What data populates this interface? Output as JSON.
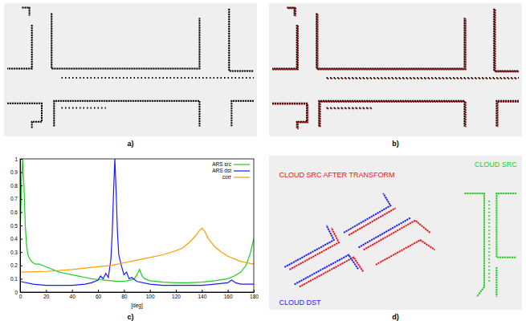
{
  "panels": [
    {
      "label": "a)",
      "xlim": [
        0,
        100
      ],
      "ylim": [
        0,
        55
      ],
      "clouds": [
        {
          "color": "#000000",
          "line_style": "solid",
          "polylines": [
            [
              [
                6,
                0.5
              ],
              [
                9,
                0.5
              ],
              [
                9,
                4
              ]
            ],
            [
              [
                10,
                8
              ],
              [
                10,
                27
              ],
              [
                0,
                27
              ]
            ],
            [
              [
                18,
                3
              ],
              [
                18,
                27
              ],
              [
                78,
                27
              ],
              [
                78,
                5
              ]
            ],
            [
              [
                90,
                1
              ],
              [
                90,
                28
              ],
              [
                100,
                28
              ]
            ],
            [
              [
                0,
                42
              ],
              [
                14,
                42
              ],
              [
                14,
                50
              ],
              [
                10,
                50
              ],
              [
                10,
                53
              ]
            ],
            [
              [
                19,
                52
              ],
              [
                19,
                41
              ],
              [
                78,
                41
              ],
              [
                78,
                52
              ]
            ],
            [
              [
                100,
                41
              ],
              [
                91,
                41
              ],
              [
                91,
                52
              ]
            ]
          ]
        },
        {
          "color": "#000000",
          "line_style": "dotted",
          "polylines": [
            [
              [
                22,
                31
              ],
              [
                100,
                31
              ]
            ],
            [
              [
                22,
                44
              ],
              [
                40,
                44
              ]
            ]
          ]
        }
      ]
    },
    {
      "label": "b)",
      "xlim": [
        0,
        100
      ],
      "ylim": [
        0,
        55
      ],
      "clouds": [
        {
          "color": "#000000",
          "line_style": "solid",
          "polylines": [
            [
              [
                6,
                0.5
              ],
              [
                9,
                0.5
              ],
              [
                9,
                4
              ]
            ],
            [
              [
                10,
                8
              ],
              [
                10,
                27
              ],
              [
                0,
                27
              ]
            ],
            [
              [
                18,
                3
              ],
              [
                18,
                27
              ],
              [
                78,
                27
              ],
              [
                78,
                5
              ]
            ],
            [
              [
                90,
                1
              ],
              [
                90,
                28
              ],
              [
                100,
                28
              ]
            ],
            [
              [
                0,
                42
              ],
              [
                14,
                42
              ],
              [
                14,
                50
              ],
              [
                10,
                50
              ],
              [
                10,
                53
              ]
            ],
            [
              [
                19,
                52
              ],
              [
                19,
                41
              ],
              [
                78,
                41
              ],
              [
                78,
                52
              ]
            ],
            [
              [
                100,
                41
              ],
              [
                91,
                41
              ],
              [
                91,
                52
              ]
            ]
          ]
        },
        {
          "color": "#000000",
          "line_style": "dotted",
          "polylines": [
            [
              [
                22,
                31
              ],
              [
                100,
                31
              ]
            ],
            [
              [
                22,
                44
              ],
              [
                40,
                44
              ]
            ]
          ]
        },
        {
          "color": "#8b0000",
          "line_style": "solid",
          "polylines": [
            [
              [
                6.4,
                0.8
              ],
              [
                9.4,
                0.8
              ],
              [
                9.4,
                4.3
              ]
            ],
            [
              [
                10.4,
                8.3
              ],
              [
                10.4,
                27.3
              ],
              [
                0,
                27.3
              ]
            ],
            [
              [
                18.4,
                3.3
              ],
              [
                18.4,
                27.3
              ],
              [
                78.4,
                27.3
              ],
              [
                78.4,
                5.3
              ]
            ],
            [
              [
                90.4,
                1.3
              ],
              [
                90.4,
                28.3
              ],
              [
                100,
                28.3
              ]
            ],
            [
              [
                0,
                42.3
              ],
              [
                14.4,
                42.3
              ],
              [
                14.4,
                50.3
              ],
              [
                10.4,
                50.3
              ],
              [
                10.4,
                53.3
              ]
            ],
            [
              [
                19.4,
                52.3
              ],
              [
                19.4,
                41.3
              ],
              [
                78.4,
                41.3
              ],
              [
                78.4,
                52.3
              ]
            ],
            [
              [
                100,
                41.3
              ],
              [
                91.4,
                41.3
              ],
              [
                91.4,
                52.3
              ]
            ]
          ]
        },
        {
          "color": "#8b0000",
          "line_style": "dotted",
          "polylines": [
            [
              [
                22.4,
                31.3
              ],
              [
                100,
                31.3
              ]
            ],
            [
              [
                22.4,
                44.3
              ],
              [
                40.4,
                44.3
              ]
            ]
          ]
        }
      ]
    },
    {
      "label": "c)"
    },
    {
      "label": "d)",
      "xlim": [
        0,
        100
      ],
      "ylim": [
        0,
        60
      ],
      "clouds": [
        {
          "name": "CLOUD SRC AFTER TRANSFORM",
          "color": "#e8141c",
          "line_style": "solid",
          "polylines": [
            [
              [
                7,
                45
              ],
              [
                27,
                34
              ],
              [
                24,
                28
              ]
            ],
            [
              [
                31,
                31
              ],
              [
                50,
                20
              ]
            ],
            [
              [
                11,
                52
              ],
              [
                33,
                40
              ],
              [
                37,
                46
              ]
            ],
            [
              [
                37,
                37
              ],
              [
                58,
                25
              ],
              [
                64,
                30
              ]
            ],
            [
              [
                42,
                43
              ],
              [
                60,
                33
              ],
              [
                66,
                37
              ]
            ]
          ]
        },
        {
          "name": "CLOUD SRC",
          "color": "#22cc22",
          "line_style": "solid",
          "polylines": [
            [
              [
                78,
                14
              ],
              [
                86,
                14
              ],
              [
                86,
                52
              ],
              [
                83,
                56
              ]
            ],
            [
              [
                99,
                14
              ],
              [
                91,
                14
              ],
              [
                91,
                40
              ],
              [
                99,
                40
              ]
            ],
            [
              [
                91,
                44
              ],
              [
                91,
                56
              ]
            ]
          ]
        },
        {
          "color": "#22cc22",
          "line_style": "dotted",
          "polylines": [
            [
              [
                88,
                17
              ],
              [
                88,
                50
              ]
            ]
          ]
        },
        {
          "name": "CLOUD DST",
          "color": "#1a1aff",
          "line_style": "solid",
          "polylines": [
            [
              [
                5,
                44
              ],
              [
                25,
                33
              ],
              [
                22,
                27
              ]
            ],
            [
              [
                29,
                30
              ],
              [
                48,
                19
              ],
              [
                45,
                14
              ]
            ],
            [
              [
                9,
                51
              ],
              [
                31,
                39
              ],
              [
                35,
                45
              ]
            ],
            [
              [
                35,
                36
              ],
              [
                56,
                24
              ]
            ]
          ]
        }
      ]
    }
  ],
  "chart_data": {
    "type": "line",
    "xlabel": "[deg]",
    "xlim": [
      0,
      180
    ],
    "xticks": [
      0,
      20,
      40,
      60,
      80,
      100,
      120,
      140,
      160,
      180
    ],
    "ylim": [
      0,
      1
    ],
    "yticks": [
      0,
      0.1,
      0.2,
      0.3,
      0.4,
      0.5,
      0.6,
      0.7,
      0.8,
      0.9,
      1
    ],
    "grid": false,
    "legend": "top-right",
    "series": [
      {
        "name": "ARS src",
        "color": "#22cc22",
        "x": [
          0,
          1,
          2,
          3,
          4,
          5,
          6,
          8,
          10,
          12,
          15,
          20,
          25,
          30,
          35,
          40,
          45,
          50,
          55,
          60,
          65,
          70,
          75,
          80,
          85,
          88,
          90,
          92,
          94,
          96,
          100,
          110,
          120,
          130,
          140,
          150,
          160,
          165,
          170,
          174,
          177,
          180
        ],
        "values": [
          0.38,
          0.8,
          1.0,
          0.8,
          0.5,
          0.35,
          0.28,
          0.24,
          0.22,
          0.21,
          0.21,
          0.19,
          0.17,
          0.15,
          0.14,
          0.13,
          0.12,
          0.11,
          0.1,
          0.095,
          0.09,
          0.085,
          0.08,
          0.08,
          0.09,
          0.1,
          0.13,
          0.17,
          0.12,
          0.1,
          0.085,
          0.075,
          0.07,
          0.07,
          0.075,
          0.085,
          0.1,
          0.12,
          0.15,
          0.2,
          0.28,
          0.4
        ]
      },
      {
        "name": "ARS dst",
        "color": "#1a1aff",
        "x": [
          0,
          10,
          20,
          30,
          40,
          50,
          55,
          60,
          62,
          64,
          66,
          68,
          70,
          71,
          72,
          73,
          74,
          75,
          76,
          78,
          80,
          82,
          84,
          86,
          90,
          100,
          110,
          120,
          130,
          140,
          150,
          160,
          163,
          166,
          170,
          180
        ],
        "values": [
          0.08,
          0.06,
          0.05,
          0.05,
          0.05,
          0.06,
          0.07,
          0.09,
          0.12,
          0.1,
          0.14,
          0.11,
          0.25,
          0.45,
          0.75,
          1.0,
          0.75,
          0.45,
          0.28,
          0.2,
          0.13,
          0.15,
          0.1,
          0.11,
          0.08,
          0.06,
          0.05,
          0.05,
          0.05,
          0.05,
          0.06,
          0.07,
          0.09,
          0.07,
          0.06,
          0.06
        ]
      },
      {
        "name": "corr",
        "color": "#ff9a00",
        "x": [
          0,
          20,
          40,
          60,
          70,
          80,
          90,
          100,
          110,
          120,
          125,
          130,
          135,
          138,
          140,
          142,
          145,
          150,
          155,
          160,
          170,
          180
        ],
        "values": [
          0.15,
          0.155,
          0.17,
          0.19,
          0.2,
          0.22,
          0.24,
          0.26,
          0.28,
          0.31,
          0.33,
          0.37,
          0.42,
          0.46,
          0.48,
          0.46,
          0.4,
          0.34,
          0.3,
          0.27,
          0.23,
          0.21
        ]
      }
    ]
  }
}
